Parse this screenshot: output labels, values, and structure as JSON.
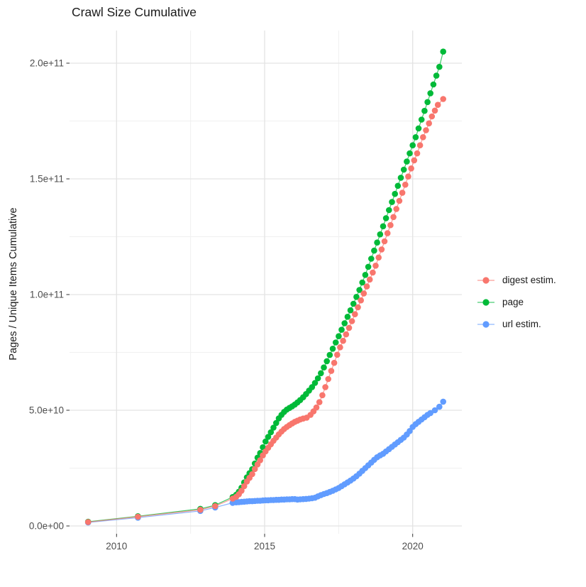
{
  "title": "Crawl Size Cumulative",
  "axes": {
    "y_label": "Pages / Unique Items Cumulative",
    "x_label": ""
  },
  "legend": {
    "items": [
      {
        "label": "digest estim.",
        "color": "#F8766D"
      },
      {
        "label": "page",
        "color": "#00BA38"
      },
      {
        "label": "url estim.",
        "color": "#619CFF"
      }
    ]
  },
  "chart_data": {
    "type": "scatter",
    "title": "Crawl Size Cumulative",
    "xlabel": "",
    "ylabel": "Pages / Unique Items Cumulative",
    "value_unit": "billions (1e9) of pages / unique items",
    "xlim": [
      2008.4,
      2021.8
    ],
    "ylim": [
      0,
      215000000000.0
    ],
    "grid": true,
    "legend_position": "right",
    "background_color": "#FFFFFF",
    "grid_major_color": "#E3E3E3",
    "grid_minor_color": "#F0F0F0",
    "tick_color": "#333333",
    "tick_label_color": "#4D4D4D",
    "x_ticks": {
      "major": [
        2010,
        2015,
        2020
      ],
      "minor": [
        2012.5,
        2017.5
      ],
      "labels": [
        "2010",
        "2015",
        "2020"
      ]
    },
    "y_ticks": {
      "major_e9": [
        0,
        50,
        100,
        150,
        200
      ],
      "minor_e9": [
        25,
        75,
        125,
        175
      ],
      "labels": [
        "0.0e+00",
        "5.0e+10",
        "1.0e+11",
        "1.5e+11",
        "2.0e+11"
      ]
    },
    "series": [
      {
        "name": "digest estim.",
        "color": "#F8766D",
        "points_year_e9": [
          [
            2009.04,
            1.7
          ],
          [
            2010.72,
            4.0
          ],
          [
            2012.83,
            7.0
          ],
          [
            2013.33,
            8.6
          ],
          [
            2013.92,
            11.8
          ],
          [
            2014.04,
            12.6
          ],
          [
            2014.13,
            13.7
          ],
          [
            2014.22,
            15.2
          ],
          [
            2014.31,
            17.2
          ],
          [
            2014.4,
            19.2
          ],
          [
            2014.49,
            20.8
          ],
          [
            2014.58,
            22.4
          ],
          [
            2014.67,
            24.6
          ],
          [
            2014.76,
            26.6
          ],
          [
            2014.85,
            28.4
          ],
          [
            2014.94,
            30.5
          ],
          [
            2015.03,
            32.2
          ],
          [
            2015.12,
            33.8
          ],
          [
            2015.21,
            35.3
          ],
          [
            2015.3,
            36.8
          ],
          [
            2015.39,
            38.2
          ],
          [
            2015.48,
            39.6
          ],
          [
            2015.57,
            40.8
          ],
          [
            2015.66,
            41.9
          ],
          [
            2015.75,
            42.8
          ],
          [
            2015.84,
            43.6
          ],
          [
            2015.93,
            44.3
          ],
          [
            2016.02,
            45.0
          ],
          [
            2016.11,
            45.5
          ],
          [
            2016.2,
            46.0
          ],
          [
            2016.3,
            46.4
          ],
          [
            2016.42,
            46.8
          ],
          [
            2016.55,
            48.0
          ],
          [
            2016.65,
            49.5
          ],
          [
            2016.75,
            51.2
          ],
          [
            2016.85,
            53.5
          ],
          [
            2016.95,
            56.5
          ],
          [
            2017.05,
            60.0
          ],
          [
            2017.15,
            63.5
          ],
          [
            2017.25,
            67.0
          ],
          [
            2017.35,
            70.5
          ],
          [
            2017.45,
            74.0
          ],
          [
            2017.55,
            77.2
          ],
          [
            2017.65,
            80.0
          ],
          [
            2017.75,
            82.8
          ],
          [
            2017.85,
            85.6
          ],
          [
            2017.95,
            88.5
          ],
          [
            2018.05,
            91.5
          ],
          [
            2018.15,
            94.5
          ],
          [
            2018.25,
            97.5
          ],
          [
            2018.35,
            100.5
          ],
          [
            2018.45,
            103.5
          ],
          [
            2018.55,
            106.5
          ],
          [
            2018.65,
            109.5
          ],
          [
            2018.75,
            112.5
          ],
          [
            2018.85,
            116.0
          ],
          [
            2018.95,
            119.5
          ],
          [
            2019.05,
            123.0
          ],
          [
            2019.15,
            126.5
          ],
          [
            2019.25,
            130.0
          ],
          [
            2019.35,
            133.5
          ],
          [
            2019.45,
            137.0
          ],
          [
            2019.55,
            140.5
          ],
          [
            2019.65,
            144.0
          ],
          [
            2019.75,
            147.5
          ],
          [
            2019.85,
            151.0
          ],
          [
            2019.95,
            154.5
          ],
          [
            2020.05,
            158.0
          ],
          [
            2020.15,
            161.0
          ],
          [
            2020.25,
            164.5
          ],
          [
            2020.35,
            168.0
          ],
          [
            2020.45,
            171.0
          ],
          [
            2020.55,
            174.0
          ],
          [
            2020.65,
            177.0
          ],
          [
            2020.75,
            179.5
          ],
          [
            2020.85,
            182.0
          ],
          [
            2021.03,
            184.5
          ]
        ]
      },
      {
        "name": "page",
        "color": "#00BA38",
        "points_year_e9": [
          [
            2009.04,
            1.8
          ],
          [
            2010.72,
            4.2
          ],
          [
            2012.83,
            7.4
          ],
          [
            2013.33,
            9.0
          ],
          [
            2013.92,
            12.5
          ],
          [
            2014.04,
            13.5
          ],
          [
            2014.13,
            14.8
          ],
          [
            2014.22,
            16.5
          ],
          [
            2014.31,
            18.8
          ],
          [
            2014.4,
            21.0
          ],
          [
            2014.49,
            22.8
          ],
          [
            2014.58,
            24.5
          ],
          [
            2014.67,
            27.0
          ],
          [
            2014.76,
            29.5
          ],
          [
            2014.85,
            31.5
          ],
          [
            2014.94,
            34.0
          ],
          [
            2015.03,
            36.5
          ],
          [
            2015.12,
            38.5
          ],
          [
            2015.21,
            40.5
          ],
          [
            2015.3,
            42.5
          ],
          [
            2015.39,
            44.5
          ],
          [
            2015.48,
            46.5
          ],
          [
            2015.57,
            48.0
          ],
          [
            2015.66,
            49.3
          ],
          [
            2015.75,
            50.3
          ],
          [
            2015.84,
            51.0
          ],
          [
            2015.93,
            51.7
          ],
          [
            2016.02,
            52.5
          ],
          [
            2016.11,
            53.4
          ],
          [
            2016.2,
            54.4
          ],
          [
            2016.3,
            55.6
          ],
          [
            2016.4,
            57.0
          ],
          [
            2016.5,
            58.5
          ],
          [
            2016.6,
            60.0
          ],
          [
            2016.7,
            61.8
          ],
          [
            2016.8,
            63.8
          ],
          [
            2016.9,
            66.0
          ],
          [
            2017.0,
            68.5
          ],
          [
            2017.1,
            71.2
          ],
          [
            2017.2,
            73.9
          ],
          [
            2017.3,
            76.6
          ],
          [
            2017.4,
            79.3
          ],
          [
            2017.5,
            82.0
          ],
          [
            2017.6,
            84.8
          ],
          [
            2017.7,
            87.6
          ],
          [
            2017.8,
            90.4
          ],
          [
            2017.9,
            93.2
          ],
          [
            2018.0,
            96.0
          ],
          [
            2018.1,
            99.0
          ],
          [
            2018.2,
            102.0
          ],
          [
            2018.3,
            105.2
          ],
          [
            2018.4,
            108.5
          ],
          [
            2018.5,
            112.0
          ],
          [
            2018.6,
            115.5
          ],
          [
            2018.7,
            119.0
          ],
          [
            2018.8,
            122.5
          ],
          [
            2018.9,
            126.0
          ],
          [
            2019.0,
            129.5
          ],
          [
            2019.1,
            133.0
          ],
          [
            2019.2,
            136.5
          ],
          [
            2019.3,
            140.0
          ],
          [
            2019.4,
            143.5
          ],
          [
            2019.5,
            147.0
          ],
          [
            2019.6,
            150.5
          ],
          [
            2019.7,
            154.0
          ],
          [
            2019.8,
            157.5
          ],
          [
            2019.9,
            161.0
          ],
          [
            2020.0,
            164.5
          ],
          [
            2020.1,
            168.0
          ],
          [
            2020.2,
            171.8
          ],
          [
            2020.3,
            175.6
          ],
          [
            2020.4,
            179.4
          ],
          [
            2020.5,
            183.2
          ],
          [
            2020.6,
            187.0
          ],
          [
            2020.7,
            190.8
          ],
          [
            2020.8,
            194.6
          ],
          [
            2020.9,
            198.4
          ],
          [
            2021.03,
            205.0
          ]
        ]
      },
      {
        "name": "url estim.",
        "color": "#619CFF",
        "points_year_e9": [
          [
            2009.04,
            1.5
          ],
          [
            2010.72,
            3.6
          ],
          [
            2012.83,
            6.5
          ],
          [
            2013.33,
            8.0
          ],
          [
            2013.92,
            10.0
          ],
          [
            2014.04,
            10.2
          ],
          [
            2014.13,
            10.3
          ],
          [
            2014.22,
            10.4
          ],
          [
            2014.31,
            10.5
          ],
          [
            2014.4,
            10.6
          ],
          [
            2014.49,
            10.7
          ],
          [
            2014.58,
            10.7
          ],
          [
            2014.67,
            10.8
          ],
          [
            2014.76,
            10.9
          ],
          [
            2014.85,
            10.9
          ],
          [
            2014.94,
            11.0
          ],
          [
            2015.03,
            11.1
          ],
          [
            2015.12,
            11.1
          ],
          [
            2015.21,
            11.2
          ],
          [
            2015.3,
            11.2
          ],
          [
            2015.39,
            11.3
          ],
          [
            2015.48,
            11.3
          ],
          [
            2015.57,
            11.4
          ],
          [
            2015.66,
            11.4
          ],
          [
            2015.75,
            11.5
          ],
          [
            2015.84,
            11.5
          ],
          [
            2015.93,
            11.6
          ],
          [
            2016.02,
            11.6
          ],
          [
            2016.11,
            11.4
          ],
          [
            2016.2,
            11.5
          ],
          [
            2016.3,
            11.6
          ],
          [
            2016.4,
            11.7
          ],
          [
            2016.5,
            11.8
          ],
          [
            2016.6,
            12.0
          ],
          [
            2016.7,
            12.2
          ],
          [
            2016.8,
            12.8
          ],
          [
            2016.9,
            13.3
          ],
          [
            2017.0,
            13.8
          ],
          [
            2017.1,
            14.2
          ],
          [
            2017.2,
            14.7
          ],
          [
            2017.3,
            15.2
          ],
          [
            2017.4,
            15.8
          ],
          [
            2017.5,
            16.4
          ],
          [
            2017.6,
            17.2
          ],
          [
            2017.7,
            18.0
          ],
          [
            2017.8,
            18.8
          ],
          [
            2017.9,
            19.6
          ],
          [
            2018.0,
            20.5
          ],
          [
            2018.1,
            21.5
          ],
          [
            2018.2,
            22.6
          ],
          [
            2018.3,
            23.8
          ],
          [
            2018.4,
            25.0
          ],
          [
            2018.5,
            26.2
          ],
          [
            2018.6,
            27.4
          ],
          [
            2018.7,
            28.6
          ],
          [
            2018.8,
            29.7
          ],
          [
            2018.9,
            30.5
          ],
          [
            2019.0,
            31.2
          ],
          [
            2019.1,
            32.2
          ],
          [
            2019.2,
            33.2
          ],
          [
            2019.3,
            34.2
          ],
          [
            2019.4,
            35.2
          ],
          [
            2019.5,
            36.2
          ],
          [
            2019.6,
            37.2
          ],
          [
            2019.7,
            38.2
          ],
          [
            2019.8,
            39.5
          ],
          [
            2019.9,
            41.0
          ],
          [
            2020.0,
            42.8
          ],
          [
            2020.1,
            44.0
          ],
          [
            2020.2,
            45.0
          ],
          [
            2020.3,
            46.0
          ],
          [
            2020.4,
            47.0
          ],
          [
            2020.5,
            48.0
          ],
          [
            2020.6,
            48.8
          ],
          [
            2020.75,
            50.0
          ],
          [
            2020.9,
            51.5
          ],
          [
            2021.03,
            53.7
          ]
        ]
      }
    ]
  }
}
